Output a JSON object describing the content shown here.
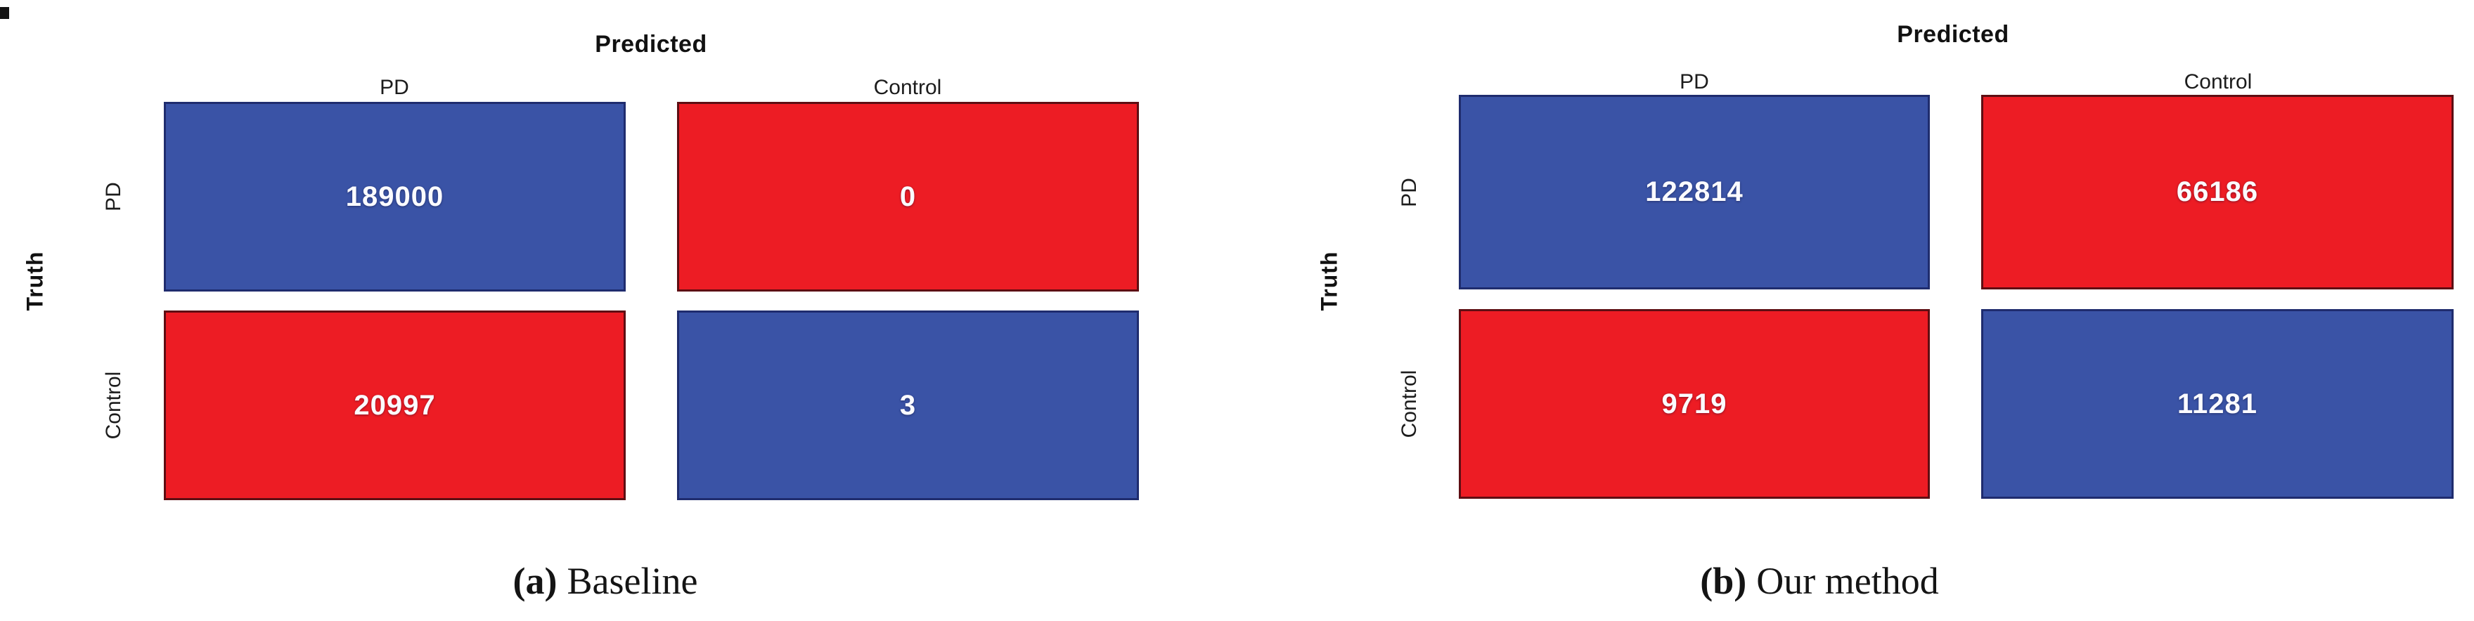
{
  "figure": {
    "panels": [
      {
        "title": "Predicted",
        "y_axis_label": "Truth",
        "col_labels": [
          "PD",
          "Control"
        ],
        "row_labels": [
          "PD",
          "Control"
        ],
        "cells": [
          {
            "value": "189000",
            "bg": "#3A53A6",
            "border": "#1F2C6E"
          },
          {
            "value": "0",
            "bg": "#ED1C24",
            "border": "#5E0E13"
          },
          {
            "value": "20997",
            "bg": "#ED1C24",
            "border": "#5E0E13"
          },
          {
            "value": "3",
            "bg": "#3A53A6",
            "border": "#1F2C6E"
          }
        ],
        "caption_label": "(a)",
        "caption_text": "Baseline"
      },
      {
        "title": "Predicted",
        "y_axis_label": "Truth",
        "col_labels": [
          "PD",
          "Control"
        ],
        "row_labels": [
          "PD",
          "Control"
        ],
        "cells": [
          {
            "value": "122814",
            "bg": "#3A53A6",
            "border": "#1F2C6E"
          },
          {
            "value": "66186",
            "bg": "#ED1C24",
            "border": "#5E0E13"
          },
          {
            "value": "9719",
            "bg": "#ED1C24",
            "border": "#5E0E13"
          },
          {
            "value": "11281",
            "bg": "#3A53A6",
            "border": "#1F2C6E"
          }
        ],
        "caption_label": "(b)",
        "caption_text": "Our method"
      }
    ],
    "colors": {
      "blue": "#3A53A6",
      "red": "#ED1C24",
      "blue_border": "#1F2C6E",
      "red_border": "#5E0E13",
      "cell_text": "#FBFBFF",
      "label_text": "#1C1C1C"
    }
  },
  "chart_data": [
    {
      "type": "heatmap",
      "title": "Predicted",
      "xlabel": "Predicted",
      "ylabel": "Truth",
      "x_categories": [
        "PD",
        "Control"
      ],
      "y_categories": [
        "PD",
        "Control"
      ],
      "values": [
        [
          189000,
          0
        ],
        [
          20997,
          3
        ]
      ],
      "cell_colors": [
        [
          "#3A53A6",
          "#ED1C24"
        ],
        [
          "#ED1C24",
          "#3A53A6"
        ]
      ],
      "caption": "(a) Baseline",
      "legend": "none",
      "grid": false
    },
    {
      "type": "heatmap",
      "title": "Predicted",
      "xlabel": "Predicted",
      "ylabel": "Truth",
      "x_categories": [
        "PD",
        "Control"
      ],
      "y_categories": [
        "PD",
        "Control"
      ],
      "values": [
        [
          122814,
          66186
        ],
        [
          9719,
          11281
        ]
      ],
      "cell_colors": [
        [
          "#3A53A6",
          "#ED1C24"
        ],
        [
          "#ED1C24",
          "#3A53A6"
        ]
      ],
      "caption": "(b) Our method",
      "legend": "none",
      "grid": false
    }
  ]
}
